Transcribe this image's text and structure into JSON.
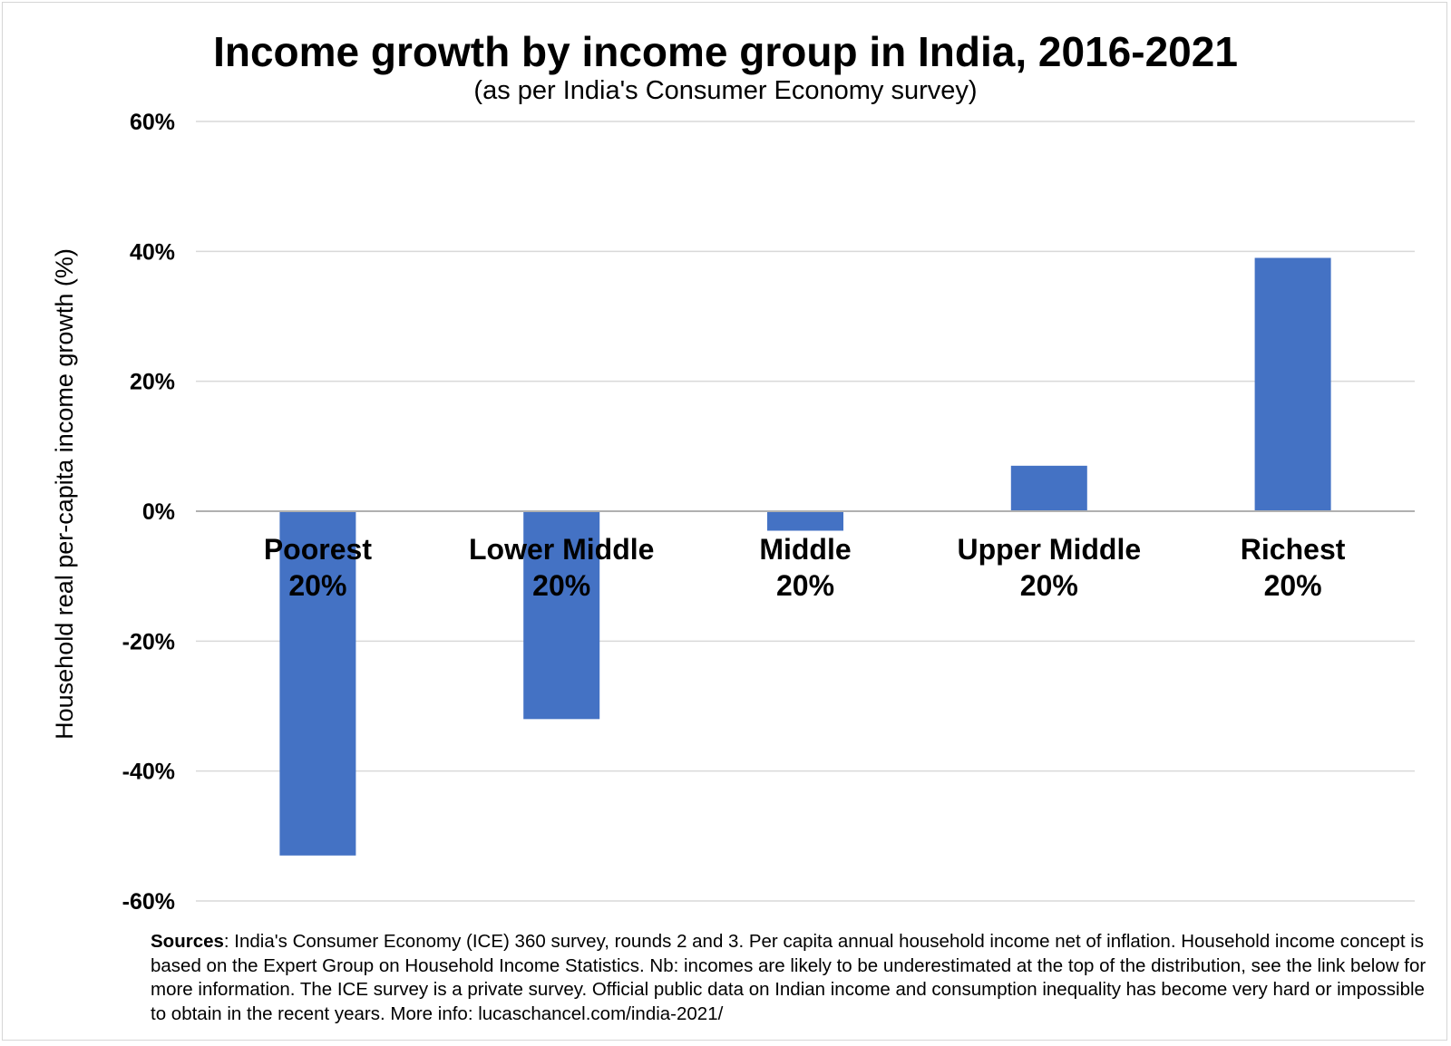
{
  "chart_data": {
    "type": "bar",
    "title": "Income growth by income group in India, 2016-2021",
    "subtitle": "(as per India's Consumer Economy survey)",
    "ylabel": "Household real per-capita income growth (%)",
    "xlabel": "",
    "ylim": [
      -60,
      60
    ],
    "yticks": [
      60,
      40,
      20,
      0,
      -20,
      -40,
      -60
    ],
    "ytick_labels": [
      "60%",
      "40%",
      "20%",
      "0%",
      "-20%",
      "-40%",
      "-60%"
    ],
    "categories": [
      [
        "Poorest",
        "20%"
      ],
      [
        "Lower Middle",
        "20%"
      ],
      [
        "Middle",
        "20%"
      ],
      [
        "Upper Middle",
        "20%"
      ],
      [
        "Richest",
        "20%"
      ]
    ],
    "values": [
      -53,
      -32,
      -3,
      7,
      39
    ],
    "grid": true,
    "bar_color": "#4472C4",
    "grid_color": "#d9d9d9"
  },
  "sources": {
    "label": "Sources",
    "text": ": India's Consumer Economy (ICE) 360 survey, rounds 2 and 3. Per capita annual household income net of inflation. Household income concept is based on the Expert Group on Household Income Statistics. Nb: incomes are likely to be underestimated at the top of the distribution, see the link below for more information. The ICE survey is a private survey. Official public data on Indian income and consumption inequality has become very hard or impossible to obtain in the recent years. More info: lucaschancel.com/india-2021/"
  }
}
